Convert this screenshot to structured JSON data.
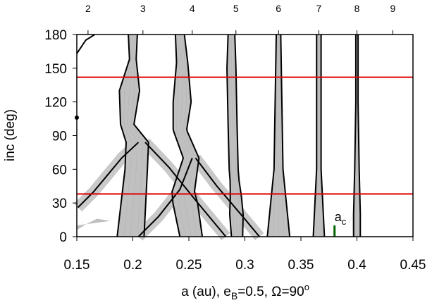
{
  "chart_data": {
    "type": "line",
    "xlabel": "a (au), e_B=0.5, Ω=90°",
    "ylabel": "inc (deg)",
    "xlim": [
      0.15,
      0.45
    ],
    "ylim": [
      0,
      180
    ],
    "x_ticks": [
      {
        "v": 0.15,
        "label": "0.15"
      },
      {
        "v": 0.2,
        "label": "0.2"
      },
      {
        "v": 0.25,
        "label": "0.25"
      },
      {
        "v": 0.3,
        "label": "0.3"
      },
      {
        "v": 0.35,
        "label": "0.35"
      },
      {
        "v": 0.4,
        "label": "0.4"
      },
      {
        "v": 0.45,
        "label": "0.45"
      }
    ],
    "y_ticks": [
      {
        "v": 0,
        "label": "0"
      },
      {
        "v": 30,
        "label": "30"
      },
      {
        "v": 60,
        "label": "60"
      },
      {
        "v": 90,
        "label": "90"
      },
      {
        "v": 120,
        "label": "120"
      },
      {
        "v": 150,
        "label": "150"
      },
      {
        "v": 180,
        "label": "180"
      }
    ],
    "top_ticks": [
      {
        "v": 0.16,
        "label": "2"
      },
      {
        "v": 0.209,
        "label": "3"
      },
      {
        "v": 0.253,
        "label": "4"
      },
      {
        "v": 0.292,
        "label": "5"
      },
      {
        "v": 0.33,
        "label": "6"
      },
      {
        "v": 0.366,
        "label": "7"
      },
      {
        "v": 0.4,
        "label": "8"
      },
      {
        "v": 0.432,
        "label": "9"
      }
    ],
    "grid": false,
    "horizontal_lines": [
      {
        "y": 38,
        "color": "#e00000"
      },
      {
        "y": 142,
        "color": "#e00000"
      }
    ],
    "marker": {
      "label": "a",
      "subscript": "c",
      "x": 0.38,
      "y0": 0,
      "y1": 10,
      "color": "#006400"
    },
    "colors": {
      "band": "#c0c0c0",
      "band_line": "#b4b4b4",
      "boundary": "#000000"
    },
    "resonances": [
      {
        "label": "2",
        "kind": "tilt",
        "lower": [
          [
            0.15,
            6
          ],
          [
            0.16,
            12
          ],
          [
            0.168,
            16
          ],
          [
            0.18,
            14
          ],
          [
            0.15,
            10
          ]
        ],
        "upper": [
          [
            0.15,
            163
          ],
          [
            0.158,
            175
          ],
          [
            0.166,
            180
          ]
        ]
      },
      {
        "label": "3",
        "center": [
          [
            0,
            0.198
          ],
          [
            60,
            0.203
          ],
          [
            84,
            0.204
          ],
          [
            100,
            0.195
          ],
          [
            130,
            0.197
          ],
          [
            158,
            0.2
          ],
          [
            180,
            0.2
          ]
        ],
        "halfwidth": [
          [
            0,
            0.012
          ],
          [
            30,
            0.011
          ],
          [
            60,
            0.01
          ],
          [
            84,
            0.01
          ],
          [
            100,
            0.006
          ],
          [
            130,
            0.009
          ],
          [
            158,
            0.003
          ],
          [
            180,
            0.004
          ]
        ]
      },
      {
        "label": "4",
        "center": [
          [
            0,
            0.252
          ],
          [
            40,
            0.245
          ],
          [
            70,
            0.252
          ],
          [
            95,
            0.242
          ],
          [
            120,
            0.244
          ],
          [
            155,
            0.244
          ],
          [
            180,
            0.242
          ]
        ],
        "halfwidth": [
          [
            0,
            0.01
          ],
          [
            30,
            0.011
          ],
          [
            70,
            0.007
          ],
          [
            95,
            0.006
          ],
          [
            120,
            0.008
          ],
          [
            155,
            0.005
          ],
          [
            180,
            0.004
          ]
        ]
      },
      {
        "label": "5",
        "center": [
          [
            0,
            0.293
          ],
          [
            35,
            0.292
          ],
          [
            60,
            0.29
          ],
          [
            100,
            0.289
          ],
          [
            150,
            0.288
          ],
          [
            180,
            0.288
          ]
        ],
        "halfwidth": [
          [
            0,
            0.005
          ],
          [
            20,
            0.006
          ],
          [
            50,
            0.004
          ],
          [
            90,
            0.004
          ],
          [
            150,
            0.004
          ],
          [
            180,
            0.003
          ]
        ]
      },
      {
        "label": "6",
        "center": [
          [
            0,
            0.33
          ],
          [
            25,
            0.33
          ],
          [
            60,
            0.33
          ],
          [
            120,
            0.33
          ],
          [
            180,
            0.33
          ]
        ],
        "halfwidth": [
          [
            0,
            0.01
          ],
          [
            20,
            0.008
          ],
          [
            60,
            0.004
          ],
          [
            120,
            0.003
          ],
          [
            180,
            0.002
          ]
        ]
      },
      {
        "label": "7",
        "center": [
          [
            0,
            0.366
          ],
          [
            25,
            0.366
          ],
          [
            60,
            0.366
          ],
          [
            120,
            0.366
          ],
          [
            180,
            0.366
          ]
        ],
        "halfwidth": [
          [
            0,
            0.005
          ],
          [
            20,
            0.004
          ],
          [
            60,
            0.002
          ],
          [
            120,
            0.002
          ],
          [
            180,
            0.002
          ]
        ]
      },
      {
        "label": "8",
        "center": [
          [
            0,
            0.4
          ],
          [
            25,
            0.4
          ],
          [
            60,
            0.4
          ],
          [
            120,
            0.4
          ],
          [
            180,
            0.4
          ]
        ],
        "halfwidth": [
          [
            0,
            0.003
          ],
          [
            20,
            0.003
          ],
          [
            60,
            0.002
          ],
          [
            120,
            0.001
          ],
          [
            180,
            0.001
          ]
        ]
      }
    ],
    "diagonals": [
      {
        "label": "3-left",
        "points": [
          [
            0.151,
            26
          ],
          [
            0.165,
            40
          ],
          [
            0.19,
            70
          ],
          [
            0.205,
            84
          ]
        ]
      },
      {
        "label": "3-right",
        "points": [
          [
            0.211,
            84
          ],
          [
            0.232,
            62
          ],
          [
            0.258,
            30
          ],
          [
            0.283,
            0
          ]
        ]
      },
      {
        "label": "4-left",
        "points": [
          [
            0.205,
            0
          ],
          [
            0.223,
            18
          ],
          [
            0.242,
            42
          ],
          [
            0.253,
            70
          ]
        ]
      },
      {
        "label": "4-right",
        "points": [
          [
            0.256,
            70
          ],
          [
            0.275,
            45
          ],
          [
            0.298,
            18
          ],
          [
            0.313,
            0
          ]
        ]
      }
    ]
  }
}
